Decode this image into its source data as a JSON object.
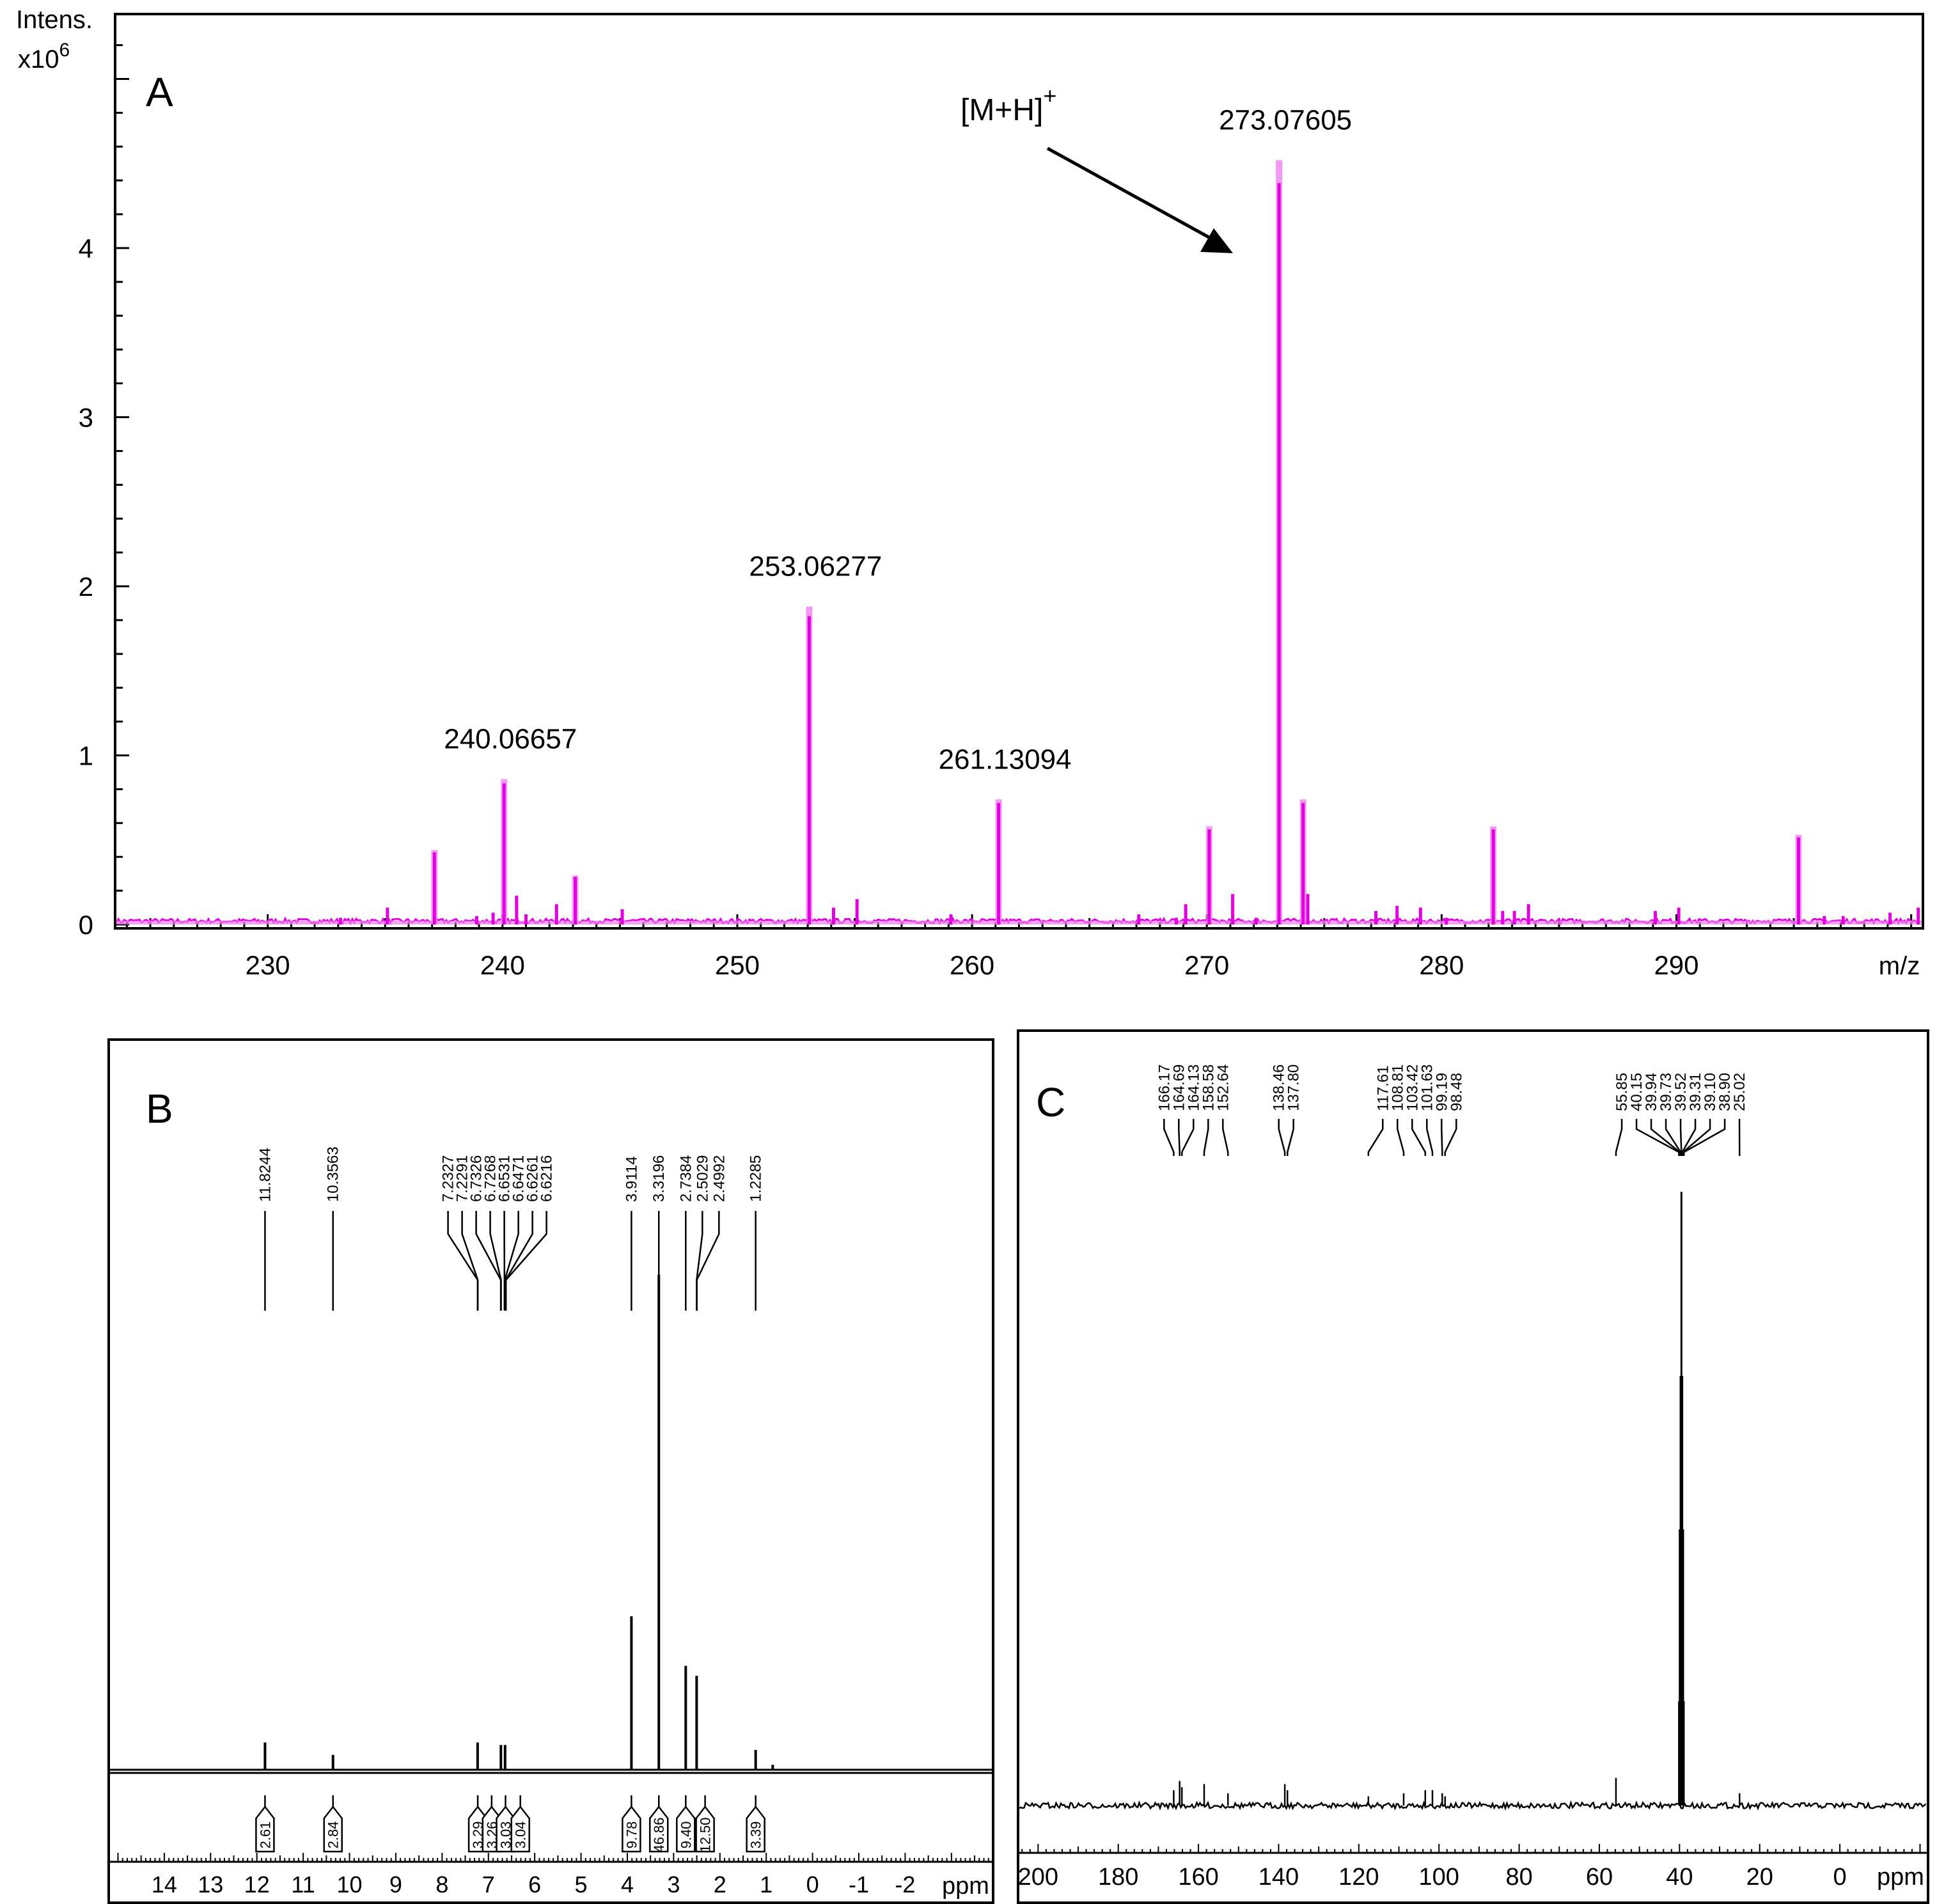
{
  "chart_data": [
    {
      "type": "line",
      "panel": "A",
      "ylabel_line1": "Intens.",
      "ylabel_line2": "x10",
      "ylabel_exp": "6",
      "xlabel": "m/z",
      "xlim": [
        223.5,
        300.5
      ],
      "ylim": [
        0,
        5.4
      ],
      "xticks": [
        230,
        240,
        250,
        260,
        270,
        280,
        290
      ],
      "yticks": [
        0,
        1,
        2,
        3,
        4
      ],
      "annotation": {
        "text": "[M+H]",
        "sup": "+",
        "target_x": 273.07605,
        "target_y": 4.0
      },
      "peak_labels": [
        {
          "x": 240.06657,
          "text": "240.06657"
        },
        {
          "x": 253.06277,
          "text": "253.06277"
        },
        {
          "x": 261.13094,
          "text": "261.13094"
        },
        {
          "x": 273.07605,
          "text": "273.07605"
        }
      ],
      "peaks": [
        {
          "x": 273.07605,
          "y": 4.52
        },
        {
          "x": 253.06277,
          "y": 1.88
        },
        {
          "x": 240.06657,
          "y": 0.86
        },
        {
          "x": 261.13094,
          "y": 0.74
        },
        {
          "x": 237.1,
          "y": 0.44
        },
        {
          "x": 274.1,
          "y": 0.74
        },
        {
          "x": 270.1,
          "y": 0.58
        },
        {
          "x": 282.2,
          "y": 0.58
        },
        {
          "x": 295.2,
          "y": 0.53
        },
        {
          "x": 243.1,
          "y": 0.29
        },
        {
          "x": 240.6,
          "y": 0.17
        },
        {
          "x": 271.1,
          "y": 0.18
        },
        {
          "x": 274.3,
          "y": 0.18
        },
        {
          "x": 255.1,
          "y": 0.15
        },
        {
          "x": 242.3,
          "y": 0.12
        },
        {
          "x": 254.1,
          "y": 0.1
        },
        {
          "x": 283.7,
          "y": 0.12
        },
        {
          "x": 269.1,
          "y": 0.12
        },
        {
          "x": 278.1,
          "y": 0.11
        },
        {
          "x": 279.1,
          "y": 0.1
        },
        {
          "x": 235.1,
          "y": 0.1
        },
        {
          "x": 245.1,
          "y": 0.09
        },
        {
          "x": 277.2,
          "y": 0.08
        },
        {
          "x": 289.1,
          "y": 0.08
        },
        {
          "x": 290.1,
          "y": 0.1
        },
        {
          "x": 282.6,
          "y": 0.08
        },
        {
          "x": 283.1,
          "y": 0.08
        },
        {
          "x": 299.1,
          "y": 0.07
        },
        {
          "x": 300.3,
          "y": 0.1
        },
        {
          "x": 239.6,
          "y": 0.07
        },
        {
          "x": 238.9,
          "y": 0.05
        },
        {
          "x": 267.1,
          "y": 0.06
        },
        {
          "x": 259.1,
          "y": 0.06
        },
        {
          "x": 297.1,
          "y": 0.05
        },
        {
          "x": 296.3,
          "y": 0.05
        },
        {
          "x": 233.1,
          "y": 0.04
        },
        {
          "x": 272.1,
          "y": 0.04
        },
        {
          "x": 241.0,
          "y": 0.06
        },
        {
          "x": 268.7,
          "y": 0.04
        },
        {
          "x": 280.2,
          "y": 0.04
        }
      ]
    },
    {
      "type": "line",
      "panel": "B",
      "xlabel": "ppm",
      "xlim": [
        15.2,
        -3.9
      ],
      "xticks": [
        14,
        13,
        12,
        11,
        10,
        9,
        8,
        7,
        6,
        5,
        4,
        3,
        2,
        1,
        0,
        -1,
        -2
      ],
      "xtick_labels": [
        "14",
        "13",
        "12",
        "11",
        "10",
        "9",
        "8",
        "7",
        "6",
        "5",
        "4",
        "3",
        "2",
        "1",
        "0",
        "-1",
        "-2"
      ],
      "shift_labels": [
        {
          "group": [
            11.8244
          ],
          "labels": [
            "11.8244"
          ]
        },
        {
          "group": [
            10.3563
          ],
          "labels": [
            "10.3563"
          ]
        },
        {
          "group": [
            7.2327,
            7.2291,
            6.7326,
            6.7268,
            6.6531,
            6.6471,
            6.6261,
            6.6216
          ],
          "labels": [
            "7.2327",
            "7.2291",
            "6.7326",
            "6.7268",
            "6.6531",
            "6.6471",
            "6.6261",
            "6.6216"
          ]
        },
        {
          "group": [
            3.9114
          ],
          "labels": [
            "3.9114"
          ]
        },
        {
          "group": [
            3.3196
          ],
          "labels": [
            "3.3196"
          ]
        },
        {
          "group": [
            2.7384
          ],
          "labels": [
            "2.7384"
          ]
        },
        {
          "group": [
            2.5029
          ],
          "labels": [
            "2.5029"
          ]
        },
        {
          "group": [
            2.4992
          ],
          "labels": [
            "2.4992"
          ]
        },
        {
          "group": [
            1.2285
          ],
          "labels": [
            "1.2285"
          ]
        }
      ],
      "peaks": [
        {
          "x": 11.8244,
          "y": 0.055
        },
        {
          "x": 10.3563,
          "y": 0.03
        },
        {
          "x": 7.2327,
          "y": 0.055
        },
        {
          "x": 6.73,
          "y": 0.05
        },
        {
          "x": 6.64,
          "y": 0.05
        },
        {
          "x": 3.9114,
          "y": 0.31
        },
        {
          "x": 3.3196,
          "y": 1.0
        },
        {
          "x": 2.7384,
          "y": 0.21
        },
        {
          "x": 2.5029,
          "y": 0.19
        },
        {
          "x": 1.2285,
          "y": 0.04
        },
        {
          "x": 0.86,
          "y": 0.01
        }
      ],
      "integrals": [
        {
          "x": 11.8244,
          "text": "2.61"
        },
        {
          "x": 10.3563,
          "text": "2.84"
        },
        {
          "x": 7.23,
          "text": "3.29"
        },
        {
          "x": 6.93,
          "text": "3.26"
        },
        {
          "x": 6.63,
          "text": "3.03"
        },
        {
          "x": 6.31,
          "text": "3.04"
        },
        {
          "x": 3.9114,
          "text": "9.78"
        },
        {
          "x": 3.3196,
          "text": "46.86"
        },
        {
          "x": 2.7384,
          "text": "9.40"
        },
        {
          "x": 2.32,
          "text": "12.50"
        },
        {
          "x": 1.2285,
          "text": "3.39"
        }
      ]
    },
    {
      "type": "line",
      "panel": "C",
      "xlabel": "ppm",
      "xlim": [
        205,
        -22
      ],
      "xticks": [
        200,
        180,
        160,
        140,
        120,
        100,
        80,
        60,
        40,
        20,
        0
      ],
      "xtick_labels": [
        "200",
        "180",
        "160",
        "140",
        "120",
        "100",
        "80",
        "60",
        "40",
        "20",
        "0"
      ],
      "shift_labels": [
        {
          "group": [
            166.17,
            164.69,
            164.13,
            158.58,
            152.64
          ],
          "labels": [
            "166.17",
            "164.69",
            "164.13",
            "158.58",
            "152.64"
          ]
        },
        {
          "group": [
            138.46,
            137.8
          ],
          "labels": [
            "138.46",
            "137.80"
          ]
        },
        {
          "group": [
            117.61,
            108.81,
            103.42,
            101.63,
            99.19,
            98.48
          ],
          "labels": [
            "117.61",
            "108.81",
            "103.42",
            "101.63",
            "99.19",
            "98.48"
          ]
        },
        {
          "group": [
            55.85,
            40.15,
            39.94,
            39.73,
            39.52,
            39.31,
            39.1,
            38.9,
            25.02
          ],
          "labels": [
            "55.85",
            "40.15",
            "39.94",
            "39.73",
            "39.52",
            "39.31",
            "39.10",
            "38.90",
            "25.02"
          ]
        }
      ],
      "peaks": [
        {
          "x": 166.17,
          "y": 0.025
        },
        {
          "x": 164.69,
          "y": 0.04
        },
        {
          "x": 164.13,
          "y": 0.03
        },
        {
          "x": 158.58,
          "y": 0.035
        },
        {
          "x": 152.64,
          "y": 0.02
        },
        {
          "x": 138.46,
          "y": 0.035
        },
        {
          "x": 137.8,
          "y": 0.025
        },
        {
          "x": 117.61,
          "y": 0.015
        },
        {
          "x": 108.81,
          "y": 0.02
        },
        {
          "x": 103.42,
          "y": 0.025
        },
        {
          "x": 101.63,
          "y": 0.025
        },
        {
          "x": 99.19,
          "y": 0.02
        },
        {
          "x": 98.48,
          "y": 0.015
        },
        {
          "x": 55.85,
          "y": 0.045
        },
        {
          "x": 40.15,
          "y": 0.17
        },
        {
          "x": 39.94,
          "y": 0.45
        },
        {
          "x": 39.73,
          "y": 0.7
        },
        {
          "x": 39.52,
          "y": 1.0
        },
        {
          "x": 39.31,
          "y": 0.7
        },
        {
          "x": 39.1,
          "y": 0.45
        },
        {
          "x": 38.9,
          "y": 0.17
        },
        {
          "x": 25.02,
          "y": 0.02
        }
      ]
    }
  ],
  "panel_letters": {
    "a": "A",
    "b": "B",
    "c": "C"
  },
  "colors": {
    "ms_trace": "#e000e0",
    "ms_trace_light": "#f080f0",
    "nmr_trace": "#000000"
  }
}
